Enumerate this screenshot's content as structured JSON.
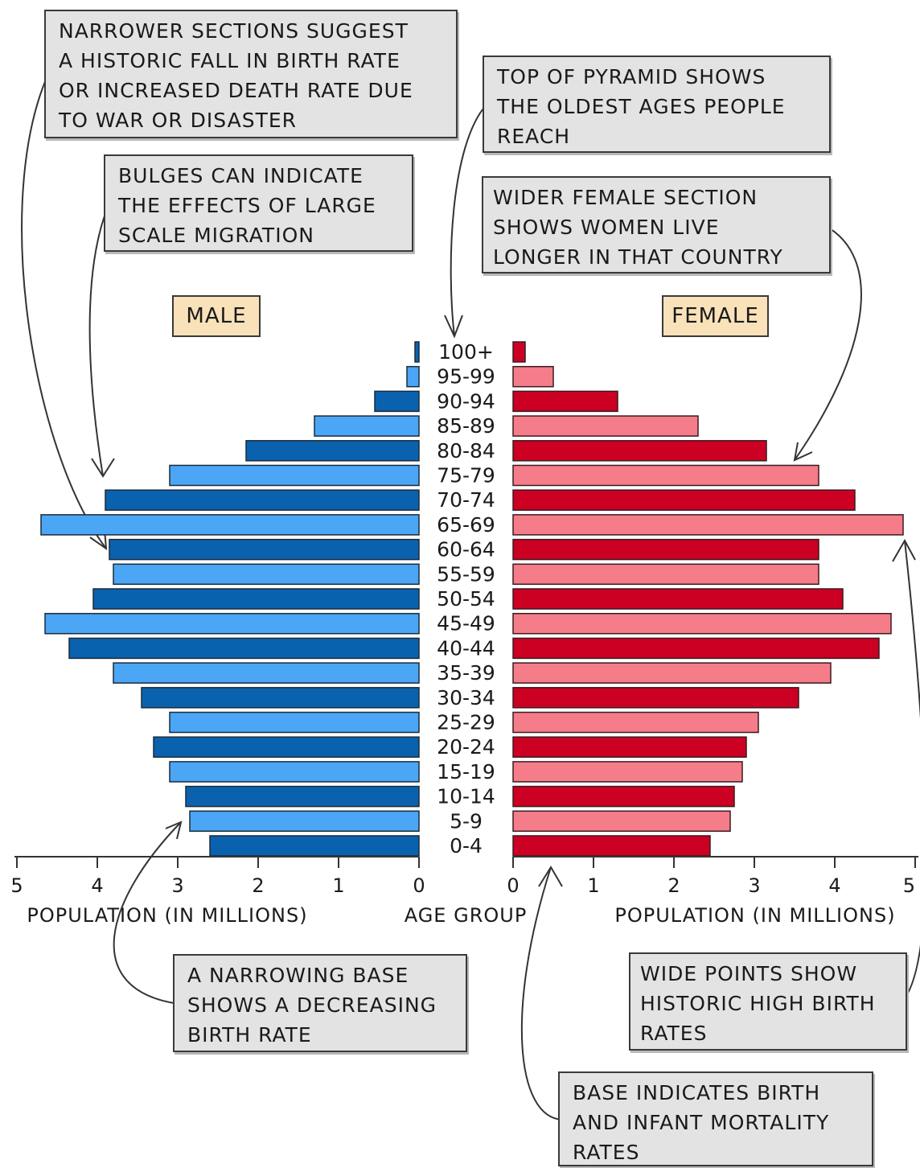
{
  "chart_data": {
    "type": "bar",
    "orientation": "horizontal-pyramid",
    "categories": [
      "100+",
      "95-99",
      "90-94",
      "85-89",
      "80-84",
      "75-79",
      "70-74",
      "65-69",
      "60-64",
      "55-59",
      "50-54",
      "45-49",
      "40-44",
      "35-39",
      "30-34",
      "25-29",
      "20-24",
      "15-19",
      "10-14",
      "5-9",
      "0-4"
    ],
    "series": [
      {
        "name": "MALE",
        "values": [
          0.05,
          0.15,
          0.55,
          1.3,
          2.15,
          3.1,
          3.9,
          4.7,
          3.85,
          3.8,
          4.05,
          4.65,
          4.35,
          3.8,
          3.45,
          3.1,
          3.3,
          3.1,
          2.9,
          2.85,
          2.6
        ]
      },
      {
        "name": "FEMALE",
        "values": [
          0.15,
          0.5,
          1.3,
          2.3,
          3.15,
          3.8,
          4.25,
          4.85,
          3.8,
          3.8,
          4.1,
          4.7,
          4.55,
          3.95,
          3.55,
          3.05,
          2.9,
          2.85,
          2.75,
          2.7,
          2.45
        ]
      }
    ],
    "xlim": [
      0,
      5
    ],
    "x_ticks": [
      "5",
      "4",
      "3",
      "2",
      "1",
      "0"
    ],
    "x_ticks_right": [
      "0",
      "1",
      "2",
      "3",
      "4",
      "5"
    ],
    "xlabel_left": "POPULATION (IN MILLIONS)",
    "xlabel_right": "POPULATION (IN MILLIONS)",
    "ylabel": "AGE GROUP",
    "colors": {
      "male_dark": "#0a62ae",
      "male_light": "#4ba6f5",
      "female_dark": "#cc0022",
      "female_light": "#f57c89"
    }
  },
  "labels": {
    "male": "MALE",
    "female": "FEMALE"
  },
  "annotations": {
    "narrower_sections": "NARROWER SECTIONS SUGGEST\nA HISTORIC FALL IN BIRTH RATE\nOR INCREASED DEATH RATE DUE\nTO WAR OR DISASTER",
    "top_of_pyramid": "TOP OF PYRAMID SHOWS\nTHE OLDEST AGES PEOPLE\nREACH",
    "bulges": "BULGES CAN INDICATE\nTHE EFFECTS OF LARGE\nSCALE MIGRATION",
    "wider_female": "WIDER FEMALE SECTION\nSHOWS WOMEN LIVE\nLONGER IN THAT COUNTRY",
    "narrowing_base": "A NARROWING BASE\nSHOWS A DECREASING\nBIRTH RATE",
    "wide_points": "WIDE POINTS SHOW\nHISTORIC HIGH BIRTH\nRATES",
    "base_indicates": "BASE INDICATES BIRTH\nAND INFANT MORTALITY\nRATES"
  }
}
